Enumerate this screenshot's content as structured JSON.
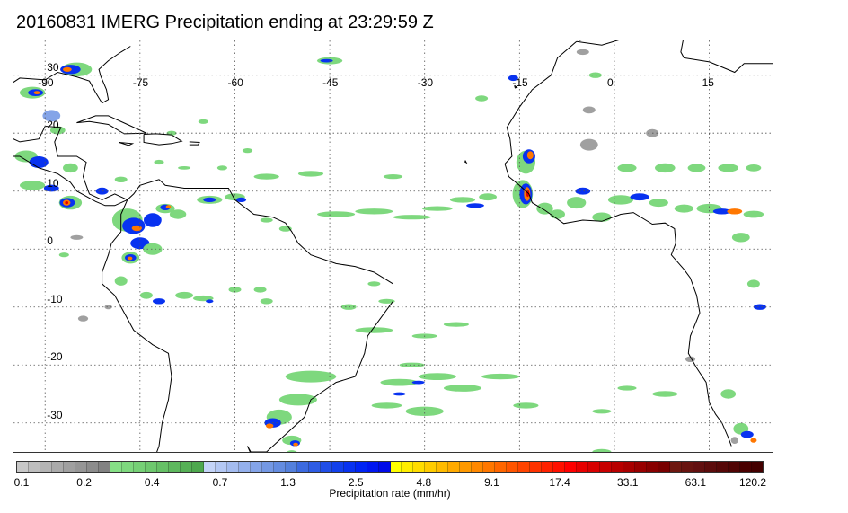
{
  "title": "20160831 IMERG Precipitation ending at 23:29:59 Z",
  "map": {
    "lon_labels": [
      "-90",
      "-75",
      "-60",
      "-45",
      "-30",
      "-15",
      "0",
      "15"
    ],
    "lat_labels": [
      "30",
      "20",
      "10",
      "0",
      "-10",
      "-20",
      "-30"
    ],
    "lon_values": [
      -90,
      -75,
      -60,
      -45,
      -30,
      -15,
      0,
      15
    ],
    "lat_values": [
      30,
      20,
      10,
      0,
      -10,
      -20,
      -30
    ],
    "lon_range": [
      -95,
      25
    ],
    "lat_range": [
      36,
      -35
    ],
    "grid": "dotted"
  },
  "colorbar": {
    "title": "Precipitation rate (mm/hr)",
    "tick_labels": [
      "0.1",
      "0.2",
      "0.4",
      "0.7",
      "1.3",
      "2.5",
      "4.8",
      "9.1",
      "17.4",
      "33.1",
      "63.1",
      "120.2"
    ],
    "colors": [
      "#c8c8c8",
      "#bebebe",
      "#b4b4b4",
      "#aaaaaa",
      "#a0a0a0",
      "#969696",
      "#8c8c8c",
      "#828282",
      "#86e086",
      "#7ed87e",
      "#76d076",
      "#6ec86e",
      "#66c066",
      "#5eb85e",
      "#56b056",
      "#4ea84e",
      "#c4d4f8",
      "#b4c8f4",
      "#a4bcf0",
      "#94b0ec",
      "#84a4e8",
      "#7498e4",
      "#648ce0",
      "#5480dc",
      "#3c6ae0",
      "#2e5ce4",
      "#204ee8",
      "#1240ec",
      "#0832f0",
      "#0024f4",
      "#0016f0",
      "#000ae8",
      "#ffff00",
      "#ffee00",
      "#ffdd00",
      "#ffcc00",
      "#ffbb00",
      "#ffaa00",
      "#ff9900",
      "#ff8800",
      "#ff7700",
      "#ff6600",
      "#ff5500",
      "#ff4400",
      "#ff3300",
      "#ff2200",
      "#ff1100",
      "#ff0000",
      "#e80000",
      "#d80000",
      "#c80000",
      "#b80000",
      "#a80000",
      "#980000",
      "#880000",
      "#780000",
      "#6e1810",
      "#681410",
      "#621010",
      "#5c0c0c",
      "#560808",
      "#500404",
      "#4a0000",
      "#440000"
    ]
  },
  "precip_palette": {
    "light": "#7ed87e",
    "gray": "#a0a0a0",
    "lightblue": "#84a4e8",
    "blue": "#0832f0",
    "yellow": "#ffcc00",
    "orange": "#ff7700",
    "red": "#e80000"
  }
}
